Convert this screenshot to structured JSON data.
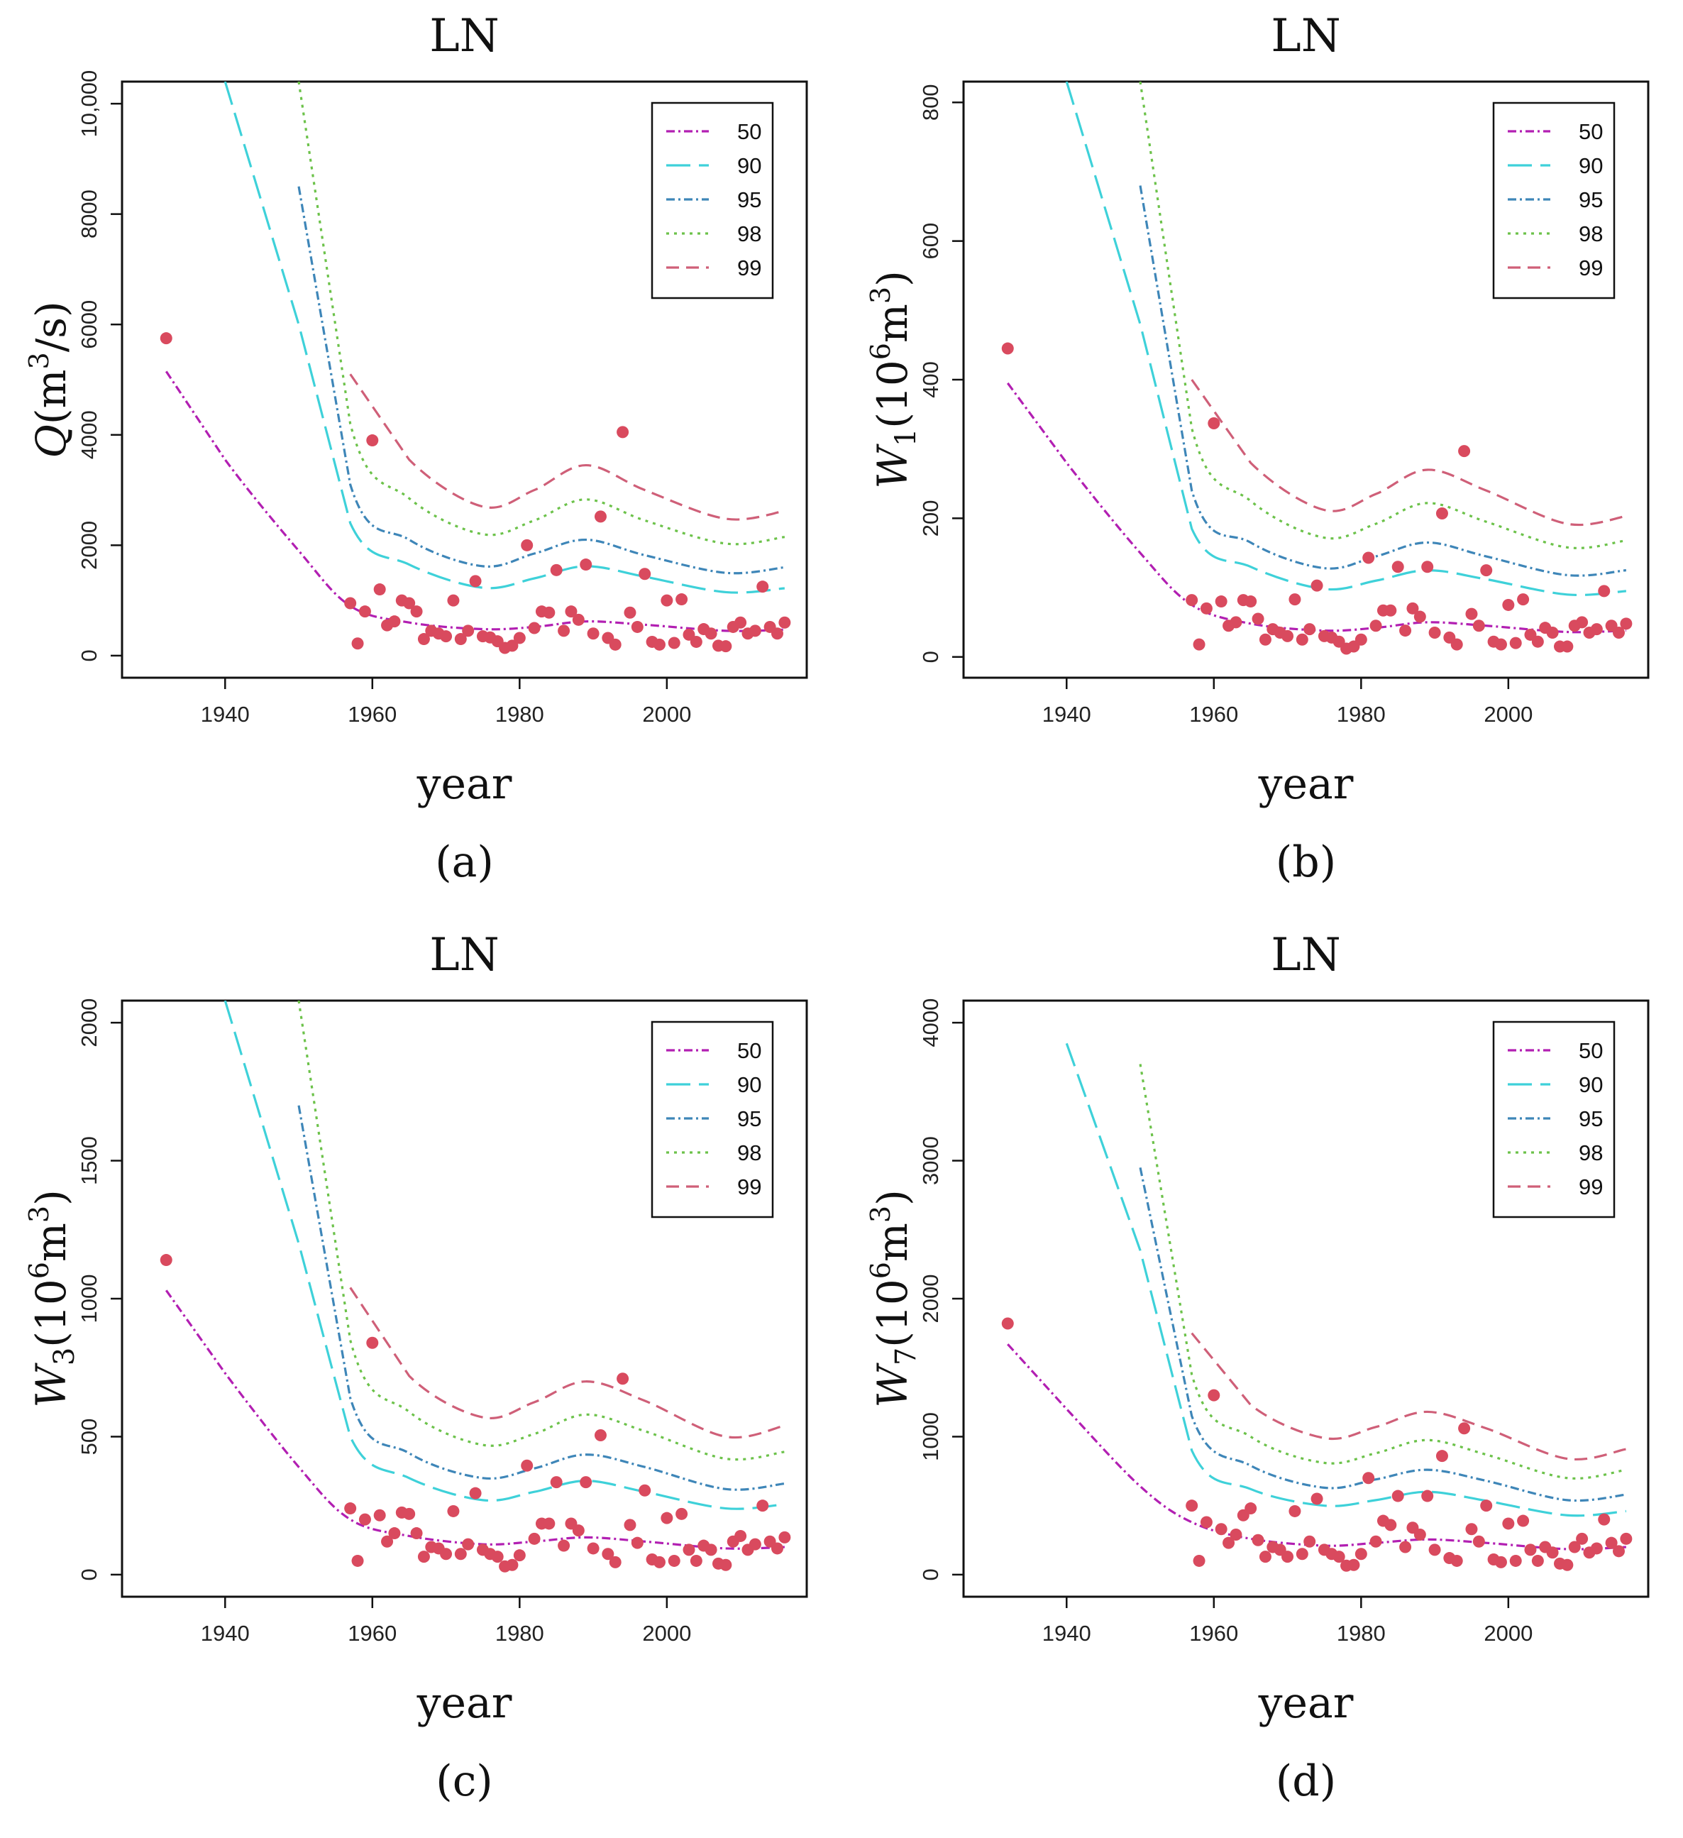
{
  "series_style": {
    "names": [
      "50",
      "90",
      "95",
      "98",
      "99"
    ],
    "colors": [
      "#b21fb2",
      "#3ed1d9",
      "#3e86b8",
      "#6cc24a",
      "#cf5f78"
    ],
    "dashes": [
      "12,5,3,5",
      "34,12",
      "12,5,3,5",
      "4,7",
      "18,10"
    ],
    "point_color": "#d94a5e"
  },
  "chart_data": [
    {
      "type": "line",
      "caption": "(a)",
      "title": "LN",
      "xlabel": "year",
      "ylabel": "Q(m3/s)",
      "ylabel_parts": {
        "var": "Q",
        "sub": "",
        "unit_pre": "(m",
        "unit_sup": "3",
        "unit_post": "/s)"
      },
      "xlim": [
        1926,
        2019
      ],
      "ylim": [
        -400,
        10400
      ],
      "xticks": [
        "1940",
        "1960",
        "1980",
        "2000"
      ],
      "yticks": [
        "0",
        "2000",
        "4000",
        "6000",
        "8000",
        "10,000"
      ],
      "x": [
        1932,
        1940,
        1950,
        1957,
        1965,
        1975,
        1982,
        1989,
        1997,
        2008,
        2016
      ],
      "series": [
        {
          "name": "50",
          "values": [
            5150,
            3550,
            1900,
            900,
            600,
            480,
            520,
            620,
            560,
            450,
            470
          ]
        },
        {
          "name": "90",
          "values": [
            null,
            10400,
            6000,
            2400,
            1650,
            1230,
            1400,
            1620,
            1430,
            1150,
            1220
          ]
        },
        {
          "name": "95",
          "values": [
            null,
            null,
            8500,
            3100,
            2100,
            1620,
            1850,
            2100,
            1820,
            1500,
            1600
          ]
        },
        {
          "name": "98",
          "values": [
            null,
            null,
            10400,
            4200,
            2850,
            2200,
            2450,
            2830,
            2450,
            2030,
            2150
          ]
        },
        {
          "name": "99",
          "values": [
            null,
            null,
            null,
            5100,
            3550,
            2700,
            3000,
            3450,
            3000,
            2480,
            2620
          ]
        }
      ],
      "points": {
        "x": [
          1932,
          1957,
          1958,
          1959,
          1960,
          1961,
          1962,
          1963,
          1964,
          1965,
          1966,
          1967,
          1968,
          1969,
          1970,
          1971,
          1972,
          1973,
          1974,
          1975,
          1976,
          1977,
          1978,
          1979,
          1980,
          1981,
          1982,
          1983,
          1984,
          1985,
          1986,
          1987,
          1988,
          1989,
          1990,
          1991,
          1992,
          1993,
          1994,
          1995,
          1996,
          1997,
          1998,
          1999,
          2000,
          2001,
          2002,
          2003,
          2004,
          2005,
          2006,
          2007,
          2008,
          2009,
          2010,
          2011,
          2012,
          2013,
          2014,
          2015,
          2016
        ],
        "y": [
          5750,
          950,
          220,
          800,
          3900,
          1200,
          550,
          620,
          1000,
          950,
          800,
          300,
          450,
          400,
          350,
          1000,
          300,
          450,
          1350,
          350,
          330,
          260,
          140,
          180,
          320,
          2000,
          500,
          800,
          780,
          1550,
          450,
          800,
          650,
          1650,
          400,
          2520,
          320,
          200,
          4050,
          780,
          520,
          1480,
          250,
          200,
          1000,
          230,
          1020,
          380,
          250,
          480,
          400,
          180,
          170,
          520,
          600,
          400,
          450,
          1250,
          520,
          400,
          600
        ]
      }
    },
    {
      "type": "line",
      "caption": "(b)",
      "title": "LN",
      "xlabel": "year",
      "ylabel": "W1(106m3)",
      "ylabel_parts": {
        "var": "W",
        "sub": "1",
        "unit_pre": "(10",
        "unit_sup": "6",
        "unit_post": "m",
        "unit_sup2": "3",
        "unit_end": ")"
      },
      "xlim": [
        1926,
        2019
      ],
      "ylim": [
        -30,
        830
      ],
      "xticks": [
        "1940",
        "1960",
        "1980",
        "2000"
      ],
      "yticks": [
        "0",
        "200",
        "400",
        "600",
        "800"
      ],
      "x": [
        1932,
        1940,
        1950,
        1957,
        1965,
        1975,
        1982,
        1989,
        1997,
        2008,
        2016
      ],
      "series": [
        {
          "name": "50",
          "values": [
            395,
            280,
            150,
            75,
            48,
            38,
            42,
            50,
            45,
            36,
            38
          ]
        },
        {
          "name": "90",
          "values": [
            null,
            830,
            480,
            185,
            130,
            98,
            110,
            125,
            112,
            90,
            95
          ]
        },
        {
          "name": "95",
          "values": [
            null,
            null,
            680,
            240,
            165,
            128,
            145,
            165,
            145,
            118,
            125
          ]
        },
        {
          "name": "98",
          "values": [
            null,
            null,
            830,
            330,
            225,
            172,
            192,
            222,
            195,
            158,
            168
          ]
        },
        {
          "name": "99",
          "values": [
            null,
            null,
            null,
            400,
            280,
            212,
            235,
            270,
            240,
            192,
            203
          ]
        }
      ],
      "points": {
        "x": [
          1932,
          1957,
          1958,
          1959,
          1960,
          1961,
          1962,
          1963,
          1964,
          1965,
          1966,
          1967,
          1968,
          1969,
          1970,
          1971,
          1972,
          1973,
          1974,
          1975,
          1976,
          1977,
          1978,
          1979,
          1980,
          1981,
          1982,
          1983,
          1984,
          1985,
          1986,
          1987,
          1988,
          1989,
          1990,
          1991,
          1992,
          1993,
          1994,
          1995,
          1996,
          1997,
          1998,
          1999,
          2000,
          2001,
          2002,
          2003,
          2004,
          2005,
          2006,
          2007,
          2008,
          2009,
          2010,
          2011,
          2012,
          2013,
          2014,
          2015,
          2016
        ],
        "y": [
          445,
          82,
          18,
          70,
          337,
          80,
          45,
          50,
          82,
          80,
          55,
          25,
          40,
          35,
          30,
          83,
          25,
          40,
          103,
          30,
          28,
          22,
          12,
          15,
          25,
          143,
          45,
          67,
          67,
          130,
          38,
          70,
          58,
          130,
          35,
          207,
          28,
          18,
          297,
          62,
          45,
          125,
          22,
          18,
          75,
          20,
          83,
          32,
          22,
          42,
          35,
          15,
          15,
          45,
          50,
          35,
          40,
          95,
          45,
          35,
          48
        ]
      }
    },
    {
      "type": "line",
      "caption": "(c)",
      "title": "LN",
      "xlabel": "year",
      "ylabel": "W3(106m3)",
      "ylabel_parts": {
        "var": "W",
        "sub": "3",
        "unit_pre": "(10",
        "unit_sup": "6",
        "unit_post": "m",
        "unit_sup2": "3",
        "unit_end": ")"
      },
      "xlim": [
        1926,
        2019
      ],
      "ylim": [
        -80,
        2080
      ],
      "xticks": [
        "1940",
        "1960",
        "1980",
        "2000"
      ],
      "yticks": [
        "0",
        "500",
        "1000",
        "1500",
        "2000"
      ],
      "x": [
        1932,
        1940,
        1950,
        1957,
        1965,
        1975,
        1982,
        1989,
        1997,
        2008,
        2016
      ],
      "series": [
        {
          "name": "50",
          "values": [
            1030,
            730,
            390,
            200,
            140,
            110,
            120,
            135,
            120,
            95,
            100
          ]
        },
        {
          "name": "90",
          "values": [
            null,
            2080,
            1200,
            500,
            350,
            270,
            300,
            340,
            300,
            240,
            255
          ]
        },
        {
          "name": "95",
          "values": [
            null,
            null,
            1700,
            640,
            440,
            350,
            385,
            435,
            390,
            310,
            330
          ]
        },
        {
          "name": "98",
          "values": [
            null,
            null,
            2080,
            850,
            590,
            470,
            510,
            580,
            520,
            420,
            445
          ]
        },
        {
          "name": "99",
          "values": [
            null,
            null,
            null,
            1040,
            720,
            570,
            625,
            700,
            630,
            500,
            540
          ]
        }
      ],
      "points": {
        "x": [
          1932,
          1957,
          1958,
          1959,
          1960,
          1961,
          1962,
          1963,
          1964,
          1965,
          1966,
          1967,
          1968,
          1969,
          1970,
          1971,
          1972,
          1973,
          1974,
          1975,
          1976,
          1977,
          1978,
          1979,
          1980,
          1981,
          1982,
          1983,
          1984,
          1985,
          1986,
          1987,
          1988,
          1989,
          1990,
          1991,
          1992,
          1993,
          1994,
          1995,
          1996,
          1997,
          1998,
          1999,
          2000,
          2001,
          2002,
          2003,
          2004,
          2005,
          2006,
          2007,
          2008,
          2009,
          2010,
          2011,
          2012,
          2013,
          2014,
          2015,
          2016
        ],
        "y": [
          1140,
          240,
          50,
          200,
          840,
          215,
          120,
          150,
          225,
          220,
          150,
          65,
          100,
          95,
          75,
          230,
          75,
          110,
          295,
          90,
          75,
          65,
          30,
          35,
          70,
          395,
          130,
          185,
          185,
          335,
          105,
          185,
          160,
          335,
          95,
          505,
          75,
          45,
          710,
          180,
          115,
          305,
          55,
          45,
          205,
          50,
          220,
          90,
          50,
          105,
          90,
          40,
          35,
          120,
          140,
          90,
          110,
          250,
          120,
          95,
          135
        ]
      }
    },
    {
      "type": "line",
      "caption": "(d)",
      "title": "LN",
      "xlabel": "year",
      "ylabel": "W7(106m3)",
      "ylabel_parts": {
        "var": "W",
        "sub": "7",
        "unit_pre": "(10",
        "unit_sup": "6",
        "unit_post": "m",
        "unit_sup2": "3",
        "unit_end": ")"
      },
      "xlim": [
        1926,
        2019
      ],
      "ylim": [
        -160,
        4160
      ],
      "xticks": [
        "1940",
        "1960",
        "1980",
        "2000"
      ],
      "yticks": [
        "0",
        "1000",
        "2000",
        "3000",
        "4000"
      ],
      "x": [
        1932,
        1940,
        1950,
        1957,
        1965,
        1975,
        1982,
        1989,
        1997,
        2008,
        2016
      ],
      "series": [
        {
          "name": "50",
          "values": [
            1670,
            1200,
            640,
            380,
            260,
            210,
            230,
            255,
            230,
            185,
            200
          ]
        },
        {
          "name": "90",
          "values": [
            null,
            3850,
            2350,
            900,
            620,
            500,
            540,
            600,
            535,
            430,
            460
          ]
        },
        {
          "name": "95",
          "values": [
            null,
            null,
            2950,
            1150,
            790,
            630,
            690,
            760,
            680,
            540,
            580
          ]
        },
        {
          "name": "98",
          "values": [
            null,
            null,
            3700,
            1450,
            1000,
            810,
            880,
            975,
            870,
            700,
            760
          ]
        },
        {
          "name": "99",
          "values": [
            null,
            null,
            null,
            1750,
            1230,
            990,
            1070,
            1180,
            1060,
            840,
            910
          ]
        }
      ],
      "points": {
        "x": [
          1932,
          1957,
          1958,
          1959,
          1960,
          1961,
          1962,
          1963,
          1964,
          1965,
          1966,
          1967,
          1968,
          1969,
          1970,
          1971,
          1972,
          1973,
          1974,
          1975,
          1976,
          1977,
          1978,
          1979,
          1980,
          1981,
          1982,
          1983,
          1984,
          1985,
          1986,
          1987,
          1988,
          1989,
          1990,
          1991,
          1992,
          1993,
          1994,
          1995,
          1996,
          1997,
          1998,
          1999,
          2000,
          2001,
          2002,
          2003,
          2004,
          2005,
          2006,
          2007,
          2008,
          2009,
          2010,
          2011,
          2012,
          2013,
          2014,
          2015,
          2016
        ],
        "y": [
          1820,
          500,
          100,
          380,
          1300,
          330,
          230,
          290,
          430,
          480,
          250,
          130,
          200,
          180,
          130,
          460,
          150,
          240,
          550,
          180,
          150,
          130,
          65,
          70,
          150,
          700,
          240,
          390,
          360,
          570,
          200,
          340,
          290,
          570,
          180,
          860,
          120,
          100,
          1060,
          330,
          240,
          500,
          110,
          90,
          370,
          100,
          390,
          180,
          100,
          200,
          160,
          80,
          70,
          200,
          260,
          160,
          190,
          400,
          230,
          170,
          260
        ]
      }
    }
  ]
}
